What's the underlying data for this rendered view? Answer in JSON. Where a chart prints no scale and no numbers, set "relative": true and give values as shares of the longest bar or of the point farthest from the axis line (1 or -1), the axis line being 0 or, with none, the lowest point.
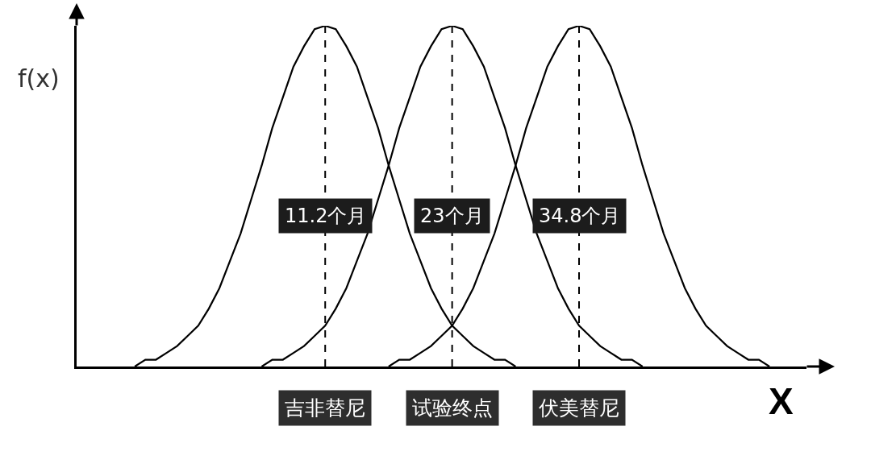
{
  "chart_data": {
    "type": "line",
    "relative": true,
    "xlabel": "X",
    "ylabel": "f(x)",
    "categories": [
      null,
      null,
      null,
      null,
      null,
      null,
      null,
      null,
      null,
      null,
      null,
      null,
      null,
      null,
      null,
      null,
      null,
      null,
      null,
      null,
      null,
      null,
      null,
      "吉非替尼",
      null,
      null,
      null,
      null,
      null,
      null,
      null,
      null,
      null,
      null,
      null,
      "试验终点",
      null,
      null,
      null,
      null,
      null,
      null,
      null,
      null,
      null,
      null,
      null,
      "伏美替尼",
      null,
      null,
      null,
      null,
      null,
      null,
      null,
      null,
      null,
      null,
      null,
      null,
      null,
      null,
      null,
      null,
      null,
      null,
      null,
      null,
      null
    ],
    "tick_labels": "x",
    "line_style": "solid",
    "ref_lines": [
      {
        "axis": "x",
        "value": "吉非替尼",
        "label": "11.2个月",
        "color": "#000000",
        "line_style": "dashed"
      },
      {
        "axis": "x",
        "value": "试验终点",
        "label": "23个月",
        "color": "#000000",
        "line_style": "dashed"
      },
      {
        "axis": "x",
        "value": "伏美替尼",
        "label": "34.8个月",
        "color": "#000000",
        "line_style": "dashed"
      }
    ],
    "series": [
      {
        "color": "#000000",
        "values": [
          null,
          null,
          null,
          null,
          null,
          0,
          0.02,
          0.02,
          0.04,
          0.06,
          0.09,
          0.12,
          0.17,
          0.23,
          0.31,
          0.39,
          0.49,
          0.59,
          0.7,
          0.79,
          0.88,
          0.94,
          0.99,
          1,
          0.99,
          0.94,
          0.88,
          0.79,
          0.7,
          0.59,
          0.49,
          0.39,
          0.31,
          0.23,
          0.17,
          0.12,
          0.09,
          0.06,
          0.04,
          0.02,
          0.02,
          0,
          null,
          null,
          null,
          null,
          null,
          null,
          null,
          null,
          null,
          null,
          null,
          null,
          null,
          null,
          null,
          null,
          null,
          null,
          null,
          null,
          null,
          null,
          null,
          null,
          null,
          null,
          null
        ]
      },
      {
        "color": "#000000",
        "values": [
          null,
          null,
          null,
          null,
          null,
          null,
          null,
          null,
          null,
          null,
          null,
          null,
          null,
          null,
          null,
          null,
          null,
          0,
          0.02,
          0.02,
          0.04,
          0.06,
          0.09,
          0.12,
          0.17,
          0.23,
          0.31,
          0.39,
          0.49,
          0.59,
          0.7,
          0.79,
          0.88,
          0.94,
          0.99,
          1,
          0.99,
          0.94,
          0.88,
          0.79,
          0.7,
          0.59,
          0.49,
          0.39,
          0.31,
          0.23,
          0.17,
          0.12,
          0.09,
          0.06,
          0.04,
          0.02,
          0.02,
          0,
          null,
          null,
          null,
          null,
          null,
          null,
          null,
          null,
          null,
          null,
          null,
          null,
          null,
          null,
          null
        ]
      },
      {
        "color": "#000000",
        "values": [
          null,
          null,
          null,
          null,
          null,
          null,
          null,
          null,
          null,
          null,
          null,
          null,
          null,
          null,
          null,
          null,
          null,
          null,
          null,
          null,
          null,
          null,
          null,
          null,
          null,
          null,
          null,
          null,
          null,
          0,
          0.02,
          0.02,
          0.04,
          0.06,
          0.09,
          0.12,
          0.17,
          0.23,
          0.31,
          0.39,
          0.49,
          0.59,
          0.7,
          0.79,
          0.88,
          0.94,
          0.99,
          1,
          0.99,
          0.94,
          0.88,
          0.79,
          0.7,
          0.59,
          0.49,
          0.39,
          0.31,
          0.23,
          0.17,
          0.12,
          0.09,
          0.06,
          0.04,
          0.02,
          0.02,
          0,
          null,
          null,
          null
        ]
      }
    ]
  }
}
